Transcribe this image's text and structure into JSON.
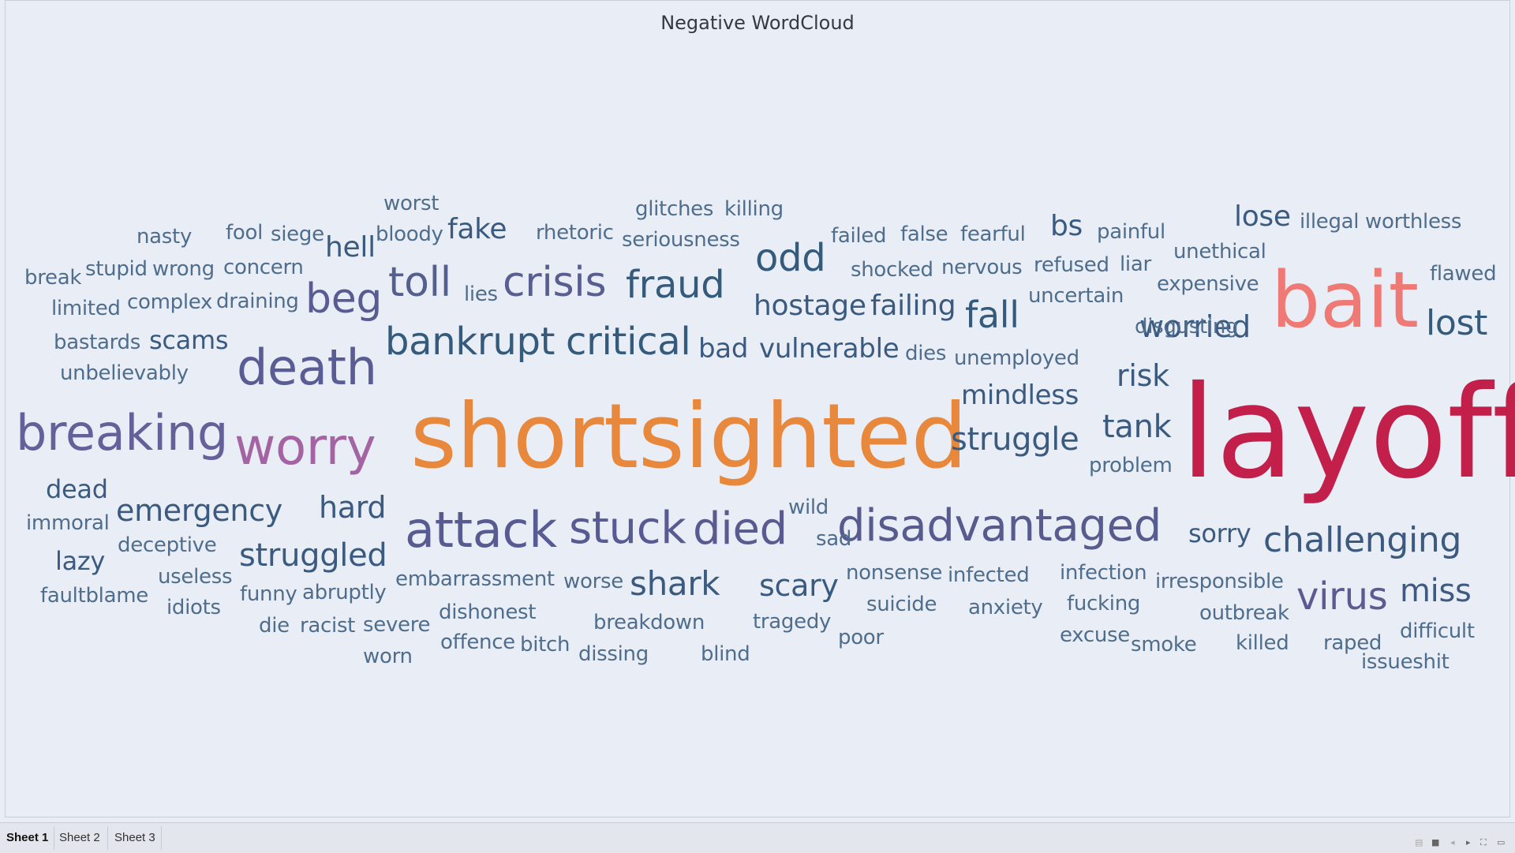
{
  "title": "Negative WordCloud",
  "tabs": [
    {
      "label": "Sheet 1",
      "active": true
    },
    {
      "label": "Sheet 2",
      "active": false
    },
    {
      "label": "Sheet 3",
      "active": false
    }
  ],
  "controls": [
    {
      "name": "view-thumbnails-icon",
      "glyph": "▤"
    },
    {
      "name": "view-filmstrip-icon",
      "glyph": "■"
    },
    {
      "name": "prev-sheet-icon",
      "glyph": "◂"
    },
    {
      "name": "next-sheet-icon",
      "glyph": "▸"
    },
    {
      "name": "fullscreen-icon",
      "glyph": "⛶"
    },
    {
      "name": "presentation-icon",
      "glyph": "▭"
    }
  ],
  "words": [
    {
      "text": "layoff",
      "color": "#c2204a"
    },
    {
      "text": "shortsighted",
      "color": "#e8883c"
    },
    {
      "text": "bait",
      "color": "#ef7a75"
    },
    {
      "text": "worry",
      "color": "#a464a4"
    },
    {
      "text": "breaking",
      "color": "#64609a"
    },
    {
      "text": "death",
      "color": "#5a5c94"
    },
    {
      "text": "attack",
      "color": "#585a92"
    },
    {
      "text": "stuck",
      "color": "#585a92"
    },
    {
      "text": "died",
      "color": "#5a5a90"
    },
    {
      "text": "disadvantaged",
      "color": "#575b8e"
    },
    {
      "text": "crisis",
      "color": "#585f90"
    },
    {
      "text": "toll",
      "color": "#545f8e"
    },
    {
      "text": "beg",
      "color": "#5a5b92"
    },
    {
      "text": "fraud",
      "color": "#345a7c"
    },
    {
      "text": "bankrupt",
      "color": "#345a7c"
    },
    {
      "text": "critical",
      "color": "#345a7c"
    },
    {
      "text": "odd",
      "color": "#345a7c"
    },
    {
      "text": "virus",
      "color": "#5c5a90"
    },
    {
      "text": "challenging",
      "color": "#3c5a80"
    },
    {
      "text": "lost",
      "color": "#345a7c"
    },
    {
      "text": "miss",
      "color": "#3f5a82"
    },
    {
      "text": "fall",
      "color": "#345a7c"
    },
    {
      "text": "worried",
      "color": "#3b5a80"
    },
    {
      "text": "struggle",
      "color": "#3a5a80"
    },
    {
      "text": "tank",
      "color": "#3a5a80"
    },
    {
      "text": "risk",
      "color": "#3a5a80"
    },
    {
      "text": "mindless",
      "color": "#3a5a80"
    },
    {
      "text": "shark",
      "color": "#3a5a80"
    },
    {
      "text": "scary",
      "color": "#3a5a80"
    },
    {
      "text": "emergency",
      "color": "#3a5a80"
    },
    {
      "text": "hard",
      "color": "#3a5a80"
    },
    {
      "text": "struggled",
      "color": "#3a5a80"
    },
    {
      "text": "hostage",
      "color": "#3a5a80"
    },
    {
      "text": "failing",
      "color": "#3a5a80"
    },
    {
      "text": "vulnerable",
      "color": "#3a5a80"
    },
    {
      "text": "bad",
      "color": "#3a5a80"
    },
    {
      "text": "fake",
      "color": "#3a5a80"
    },
    {
      "text": "hell",
      "color": "#3a5a80"
    },
    {
      "text": "bs",
      "color": "#3a5a80"
    },
    {
      "text": "lose",
      "color": "#3a5a80"
    },
    {
      "text": "sorry",
      "color": "#3a5a80"
    },
    {
      "text": "scams",
      "color": "#3a5a80"
    },
    {
      "text": "dead",
      "color": "#3a5a80"
    },
    {
      "text": "lazy",
      "color": "#3a5a80"
    },
    {
      "text": "worst",
      "color": "#4f6d8c"
    },
    {
      "text": "nasty",
      "color": "#4f6d8c"
    },
    {
      "text": "fool",
      "color": "#4f6d8c"
    },
    {
      "text": "siege",
      "color": "#4f6d8c"
    },
    {
      "text": "bloody",
      "color": "#4f6d8c"
    },
    {
      "text": "rhetoric",
      "color": "#4f6d8c"
    },
    {
      "text": "glitches",
      "color": "#4f6d8c"
    },
    {
      "text": "killing",
      "color": "#4f6d8c"
    },
    {
      "text": "seriousness",
      "color": "#4f6d8c"
    },
    {
      "text": "failed",
      "color": "#4f6d8c"
    },
    {
      "text": "false",
      "color": "#4f6d8c"
    },
    {
      "text": "fearful",
      "color": "#4f6d8c"
    },
    {
      "text": "painful",
      "color": "#4f6d8c"
    },
    {
      "text": "illegal",
      "color": "#4f6d8c"
    },
    {
      "text": "worthless",
      "color": "#4f6d8c"
    },
    {
      "text": "break",
      "color": "#4f6d8c"
    },
    {
      "text": "stupid",
      "color": "#4f6d8c"
    },
    {
      "text": "wrong",
      "color": "#4f6d8c"
    },
    {
      "text": "concern",
      "color": "#4f6d8c"
    },
    {
      "text": "shocked",
      "color": "#4f6d8c"
    },
    {
      "text": "nervous",
      "color": "#4f6d8c"
    },
    {
      "text": "refused",
      "color": "#4f6d8c"
    },
    {
      "text": "liar",
      "color": "#4f6d8c"
    },
    {
      "text": "unethical",
      "color": "#4f6d8c"
    },
    {
      "text": "flawed",
      "color": "#4f6d8c"
    },
    {
      "text": "limited",
      "color": "#4f6d8c"
    },
    {
      "text": "complex",
      "color": "#4f6d8c"
    },
    {
      "text": "draining",
      "color": "#4f6d8c"
    },
    {
      "text": "lies",
      "color": "#4f6d8c"
    },
    {
      "text": "uncertain",
      "color": "#4f6d8c"
    },
    {
      "text": "expensive",
      "color": "#4f6d8c"
    },
    {
      "text": "disgusting",
      "color": "#4f6d8c"
    },
    {
      "text": "bastards",
      "color": "#4f6d8c"
    },
    {
      "text": "dies",
      "color": "#4f6d8c"
    },
    {
      "text": "unemployed",
      "color": "#4f6d8c"
    },
    {
      "text": "unbelievably",
      "color": "#4f6d8c"
    },
    {
      "text": "problem",
      "color": "#4f6d8c"
    },
    {
      "text": "immoral",
      "color": "#4f6d8c"
    },
    {
      "text": "wild",
      "color": "#4f6d8c"
    },
    {
      "text": "sad",
      "color": "#4f6d8c"
    },
    {
      "text": "deceptive",
      "color": "#4f6d8c"
    },
    {
      "text": "embarrassment",
      "color": "#4f6d8c"
    },
    {
      "text": "worse",
      "color": "#4f6d8c"
    },
    {
      "text": "nonsense",
      "color": "#4f6d8c"
    },
    {
      "text": "infected",
      "color": "#4f6d8c"
    },
    {
      "text": "infection",
      "color": "#4f6d8c"
    },
    {
      "text": "irresponsible",
      "color": "#4f6d8c"
    },
    {
      "text": "useless",
      "color": "#4f6d8c"
    },
    {
      "text": "funny",
      "color": "#4f6d8c"
    },
    {
      "text": "abruptly",
      "color": "#4f6d8c"
    },
    {
      "text": "faultblame",
      "color": "#4f6d8c"
    },
    {
      "text": "idiots",
      "color": "#4f6d8c"
    },
    {
      "text": "dishonest",
      "color": "#4f6d8c"
    },
    {
      "text": "suicide",
      "color": "#4f6d8c"
    },
    {
      "text": "anxiety",
      "color": "#4f6d8c"
    },
    {
      "text": "fucking",
      "color": "#4f6d8c"
    },
    {
      "text": "outbreak",
      "color": "#4f6d8c"
    },
    {
      "text": "die",
      "color": "#4f6d8c"
    },
    {
      "text": "racist",
      "color": "#4f6d8c"
    },
    {
      "text": "severe",
      "color": "#4f6d8c"
    },
    {
      "text": "breakdown",
      "color": "#4f6d8c"
    },
    {
      "text": "tragedy",
      "color": "#4f6d8c"
    },
    {
      "text": "difficult",
      "color": "#4f6d8c"
    },
    {
      "text": "offence",
      "color": "#4f6d8c"
    },
    {
      "text": "bitch",
      "color": "#4f6d8c"
    },
    {
      "text": "poor",
      "color": "#4f6d8c"
    },
    {
      "text": "excuse",
      "color": "#4f6d8c"
    },
    {
      "text": "smoke",
      "color": "#4f6d8c"
    },
    {
      "text": "killed",
      "color": "#4f6d8c"
    },
    {
      "text": "raped",
      "color": "#4f6d8c"
    },
    {
      "text": "worn",
      "color": "#4f6d8c"
    },
    {
      "text": "dissing",
      "color": "#4f6d8c"
    },
    {
      "text": "blind",
      "color": "#4f6d8c"
    },
    {
      "text": "issueshit",
      "color": "#4f6d8c"
    }
  ]
}
